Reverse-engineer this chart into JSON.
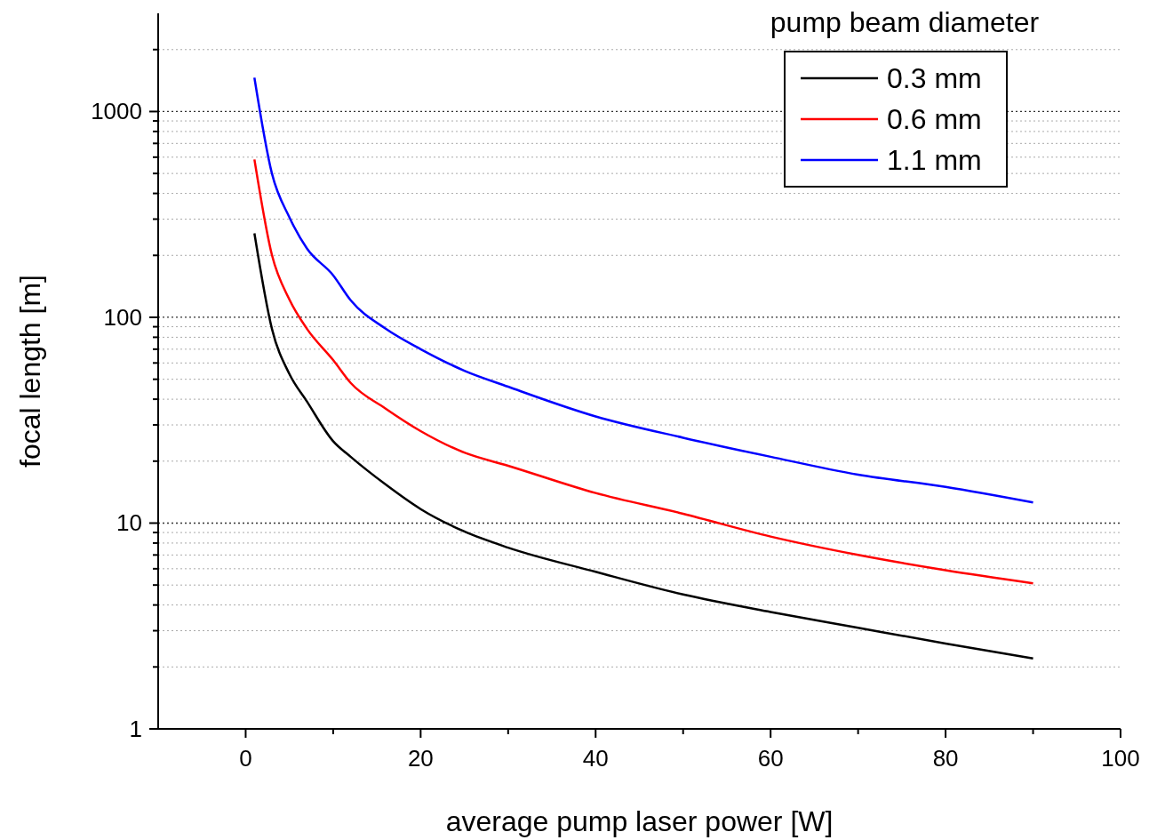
{
  "chart_data": {
    "type": "line",
    "xlabel": "average pump laser power [W]",
    "ylabel": "focal length [m]",
    "legend_title": "pump beam diameter",
    "legend": "top right",
    "log": "y",
    "grid": "y",
    "line_style": "solid",
    "marker": "none",
    "xlim": [
      -10,
      100
    ],
    "xticks": [
      0,
      {
        "value": 10,
        "label": null
      },
      20,
      {
        "value": 30,
        "label": null
      },
      40,
      {
        "value": 50,
        "label": null
      },
      60,
      {
        "value": 70,
        "label": null
      },
      80,
      {
        "value": 90,
        "label": null
      },
      100
    ],
    "ylim": [
      1,
      3000
    ],
    "yticks": [
      1,
      {
        "value": 2,
        "label": null
      },
      {
        "value": 3,
        "label": null
      },
      {
        "value": 4,
        "label": null
      },
      {
        "value": 5,
        "label": null
      },
      {
        "value": 6,
        "label": null
      },
      {
        "value": 7,
        "label": null
      },
      {
        "value": 8,
        "label": null
      },
      {
        "value": 9,
        "label": null
      },
      10,
      {
        "value": 20,
        "label": null
      },
      {
        "value": 30,
        "label": null
      },
      {
        "value": 40,
        "label": null
      },
      {
        "value": 50,
        "label": null
      },
      {
        "value": 60,
        "label": null
      },
      {
        "value": 70,
        "label": null
      },
      {
        "value": 80,
        "label": null
      },
      {
        "value": 90,
        "label": null
      },
      100,
      {
        "value": 200,
        "label": null
      },
      {
        "value": 300,
        "label": null
      },
      {
        "value": 400,
        "label": null
      },
      {
        "value": 500,
        "label": null
      },
      {
        "value": 600,
        "label": null
      },
      {
        "value": 700,
        "label": null
      },
      {
        "value": 800,
        "label": null
      },
      {
        "value": 900,
        "label": null
      },
      1000,
      {
        "value": 2000,
        "label": null
      }
    ],
    "x": [
      1,
      3,
      5,
      7,
      10,
      12,
      16,
      20,
      25,
      30,
      40,
      50,
      60,
      70,
      80,
      90
    ],
    "series": [
      {
        "name": "0.3 mm",
        "color": "#000000",
        "values": [
          256,
          88,
          53,
          39,
          25,
          21,
          15.4,
          11.7,
          9.1,
          7.6,
          5.8,
          4.5,
          3.7,
          3.1,
          2.6,
          2.2
        ]
      },
      {
        "name": "0.6 mm",
        "color": "#ff0000",
        "values": [
          585,
          201,
          122,
          88,
          62,
          48,
          36,
          28,
          22,
          19,
          14,
          11.1,
          8.6,
          7,
          5.9,
          5.1
        ]
      },
      {
        "name": "1.1 mm",
        "color": "#0000ff",
        "values": [
          1460,
          500,
          306,
          216,
          160,
          121,
          88,
          70,
          55,
          46,
          33,
          26,
          21,
          17.2,
          15,
          12.6
        ]
      }
    ]
  }
}
